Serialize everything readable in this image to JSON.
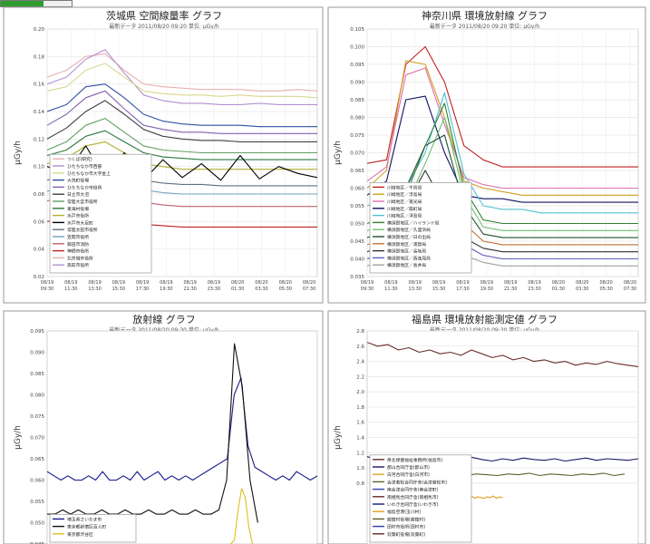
{
  "loading_progress": 0.6,
  "chart_data": [
    {
      "type": "line",
      "title": "茨城県 空間線量率 グラフ",
      "subtitle": "最新データ 2011/08/20 09:20  単位: μGy/h",
      "ylabel": "μGy/h",
      "ylim": [
        0.02,
        0.2
      ],
      "yticks": [
        "0.02",
        "0.04",
        "0.06",
        "0.08",
        "0.10",
        "0.12",
        "0.14",
        "0.16",
        "0.18",
        "0.20"
      ],
      "xticks": [
        "08/19 09:30",
        "08/19 11:30",
        "08/19 13:30",
        "08/19 15:30",
        "08/19 17:30",
        "08/19 19:30",
        "08/19 21:30",
        "08/19 23:30",
        "08/20 01:30",
        "08/20 03:30",
        "08/20 05:30",
        "08/20 07:30"
      ],
      "grid": true,
      "legend_position": "bottom-left",
      "legend": [
        "つくば(研究)",
        "ひたちなか市西部",
        "ひたちなか市大字金上",
        "大洗町役場",
        "ひたちなか市役所",
        "日立市大沼",
        "常陸大宮市役所",
        "東海村役場",
        "水戸市役所",
        "水戸市大足町",
        "常陸太田市役所",
        "笠間市役所",
        "鉾田市消防",
        "神栖市役所",
        "北茨城市役所",
        "高萩市役所"
      ],
      "series": [
        {
          "color": "#e8b0b0",
          "values": [
            0.165,
            0.17,
            0.18,
            0.182,
            0.17,
            0.16,
            0.158,
            0.157,
            0.156,
            0.156,
            0.156,
            0.155,
            0.155,
            0.156,
            0.155
          ]
        },
        {
          "color": "#b090d0",
          "values": [
            0.16,
            0.165,
            0.178,
            0.185,
            0.168,
            0.152,
            0.148,
            0.146,
            0.146,
            0.145,
            0.145,
            0.146,
            0.145,
            0.145,
            0.145
          ]
        },
        {
          "color": "#d8d890",
          "values": [
            0.155,
            0.158,
            0.17,
            0.175,
            0.165,
            0.155,
            0.153,
            0.152,
            0.152,
            0.151,
            0.152,
            0.151,
            0.151,
            0.151,
            0.15
          ]
        },
        {
          "color": "#3050a0",
          "values": [
            0.14,
            0.145,
            0.158,
            0.16,
            0.15,
            0.138,
            0.133,
            0.131,
            0.13,
            0.13,
            0.13,
            0.129,
            0.129,
            0.129,
            0.129
          ]
        },
        {
          "color": "#8060b0",
          "values": [
            0.13,
            0.138,
            0.15,
            0.155,
            0.142,
            0.13,
            0.127,
            0.125,
            0.125,
            0.124,
            0.124,
            0.124,
            0.124,
            0.124,
            0.124
          ]
        },
        {
          "color": "#404040",
          "values": [
            0.12,
            0.128,
            0.14,
            0.148,
            0.138,
            0.127,
            0.122,
            0.12,
            0.119,
            0.119,
            0.118,
            0.118,
            0.118,
            0.118,
            0.118
          ]
        },
        {
          "color": "#60a060",
          "values": [
            0.112,
            0.118,
            0.13,
            0.135,
            0.125,
            0.115,
            0.112,
            0.111,
            0.11,
            0.11,
            0.11,
            0.11,
            0.11,
            0.11,
            0.11
          ]
        },
        {
          "color": "#2a7a40",
          "values": [
            0.108,
            0.112,
            0.122,
            0.126,
            0.118,
            0.11,
            0.107,
            0.106,
            0.105,
            0.105,
            0.105,
            0.105,
            0.105,
            0.105,
            0.105
          ]
        },
        {
          "color": "#b0b030",
          "values": [
            0.102,
            0.106,
            0.115,
            0.118,
            0.11,
            0.102,
            0.1,
            0.098,
            0.098,
            0.098,
            0.098,
            0.098,
            0.098,
            0.098,
            0.098
          ]
        },
        {
          "color": "#000000",
          "values": [
            0.1,
            0.095,
            0.115,
            0.092,
            0.11,
            0.09,
            0.105,
            0.092,
            0.102,
            0.09,
            0.108,
            0.091,
            0.1,
            0.095,
            0.092
          ]
        },
        {
          "color": "#607080",
          "values": [
            0.09,
            0.094,
            0.1,
            0.102,
            0.096,
            0.09,
            0.088,
            0.087,
            0.087,
            0.086,
            0.086,
            0.086,
            0.086,
            0.086,
            0.086
          ]
        },
        {
          "color": "#70a0c0",
          "values": [
            0.082,
            0.085,
            0.092,
            0.095,
            0.088,
            0.083,
            0.081,
            0.08,
            0.08,
            0.08,
            0.08,
            0.08,
            0.08,
            0.08,
            0.08
          ]
        },
        {
          "color": "#c06070",
          "values": [
            0.075,
            0.078,
            0.085,
            0.087,
            0.08,
            0.074,
            0.072,
            0.071,
            0.071,
            0.071,
            0.071,
            0.071,
            0.071,
            0.071,
            0.071
          ]
        },
        {
          "color": "#c02020",
          "values": [
            0.06,
            0.062,
            0.068,
            0.07,
            0.062,
            0.058,
            0.057,
            0.056,
            0.056,
            0.056,
            0.056,
            0.056,
            0.056,
            0.056,
            0.056
          ]
        }
      ]
    },
    {
      "type": "line",
      "title": "神奈川県 環境放射線 グラフ",
      "subtitle": "最新データ 2011/08/20 09:20  単位: μGy/h",
      "ylabel": "μGy/h",
      "ylim": [
        0.035,
        0.105
      ],
      "yticks": [
        "0.035",
        "0.040",
        "0.045",
        "0.050",
        "0.055",
        "0.060",
        "0.065",
        "0.070",
        "0.075",
        "0.080",
        "0.085",
        "0.090",
        "0.095",
        "0.100",
        "0.105"
      ],
      "xticks": [
        "08/19 09:30",
        "08/19 11:30",
        "08/19 13:30",
        "08/19 15:30",
        "08/19 17:30",
        "08/19 19:30",
        "08/19 21:30",
        "08/19 23:30",
        "08/20 01:30",
        "08/20 03:30",
        "08/20 05:30",
        "08/20 07:30"
      ],
      "grid": true,
      "legend_position": "bottom-left",
      "legend": [
        "川崎地区／千鳥局",
        "川崎地区／浮島局",
        "川崎地区／夜光局",
        "川崎地区／殿町局",
        "川崎地区／浮島局",
        "横須賀地区／ハイランド局",
        "横須賀地区／久里浜局",
        "横須賀地区／日の出局",
        "横須賀地区／浦賀局",
        "横須賀地区／長坂局",
        "横須賀地区／西逸見局",
        "横須賀地区／長井局"
      ],
      "series": [
        {
          "color": "#c02020",
          "values": [
            0.067,
            0.068,
            0.095,
            0.1,
            0.09,
            0.072,
            0.068,
            0.066,
            0.066,
            0.066,
            0.066,
            0.066,
            0.066,
            0.066,
            0.066
          ]
        },
        {
          "color": "#d0a020",
          "values": [
            0.06,
            0.065,
            0.096,
            0.095,
            0.08,
            0.062,
            0.06,
            0.059,
            0.058,
            0.058,
            0.058,
            0.058,
            0.058,
            0.058,
            0.058
          ]
        },
        {
          "color": "#e070b0",
          "values": [
            0.062,
            0.066,
            0.092,
            0.094,
            0.078,
            0.063,
            0.061,
            0.06,
            0.06,
            0.06,
            0.06,
            0.06,
            0.06,
            0.06,
            0.06
          ]
        },
        {
          "color": "#101060",
          "values": [
            0.058,
            0.062,
            0.085,
            0.086,
            0.07,
            0.058,
            0.057,
            0.057,
            0.056,
            0.056,
            0.056,
            0.056,
            0.056,
            0.056,
            0.056
          ]
        },
        {
          "color": "#50c0d0",
          "values": [
            0.055,
            0.057,
            0.06,
            0.07,
            0.087,
            0.064,
            0.055,
            0.054,
            0.054,
            0.053,
            0.053,
            0.053,
            0.053,
            0.053,
            0.053
          ]
        },
        {
          "color": "#308030",
          "values": [
            0.05,
            0.052,
            0.058,
            0.072,
            0.084,
            0.06,
            0.051,
            0.05,
            0.05,
            0.05,
            0.05,
            0.05,
            0.05,
            0.05,
            0.05
          ]
        },
        {
          "color": "#70c070",
          "values": [
            0.048,
            0.05,
            0.055,
            0.067,
            0.08,
            0.058,
            0.049,
            0.048,
            0.048,
            0.048,
            0.048,
            0.048,
            0.048,
            0.048,
            0.048
          ]
        },
        {
          "color": "#205030",
          "values": [
            0.046,
            0.048,
            0.06,
            0.072,
            0.075,
            0.055,
            0.047,
            0.046,
            0.046,
            0.046,
            0.046,
            0.046,
            0.046,
            0.046,
            0.046
          ]
        },
        {
          "color": "#c07030",
          "values": [
            0.044,
            0.046,
            0.05,
            0.055,
            0.06,
            0.05,
            0.045,
            0.044,
            0.044,
            0.044,
            0.044,
            0.044,
            0.044,
            0.044,
            0.044
          ]
        },
        {
          "color": "#303030",
          "values": [
            0.042,
            0.044,
            0.055,
            0.065,
            0.055,
            0.046,
            0.043,
            0.042,
            0.042,
            0.042,
            0.042,
            0.042,
            0.042,
            0.042,
            0.042
          ]
        },
        {
          "color": "#6060c0",
          "values": [
            0.04,
            0.042,
            0.048,
            0.058,
            0.052,
            0.044,
            0.041,
            0.04,
            0.04,
            0.04,
            0.04,
            0.04,
            0.04,
            0.04,
            0.04
          ]
        },
        {
          "color": "#a0a0a0",
          "values": [
            0.038,
            0.04,
            0.045,
            0.05,
            0.048,
            0.041,
            0.039,
            0.038,
            0.038,
            0.038,
            0.038,
            0.038,
            0.038,
            0.038,
            0.038
          ]
        }
      ]
    },
    {
      "type": "line",
      "title": "放射線 グラフ",
      "subtitle": "最新データ 2011/08/20 09:30  単位: μGy/h",
      "ylabel": "μGy/h",
      "ylim": [
        0.045,
        0.095
      ],
      "yticks": [
        "0.045",
        "0.050",
        "0.055",
        "0.060",
        "0.065",
        "0.070",
        "0.075",
        "0.080",
        "0.085",
        "0.090",
        "0.095"
      ],
      "grid": false,
      "legend_position": "bottom-left",
      "legend": [
        "埼玉県さいたま市",
        "東京都新宿区百人町",
        "東京都渋谷区"
      ],
      "series": [
        {
          "color": "#1a1a8a",
          "values": [
            0.062,
            0.061,
            0.06,
            0.061,
            0.06,
            0.06,
            0.061,
            0.06,
            0.062,
            0.06,
            0.06,
            0.061,
            0.06,
            0.062,
            0.06,
            0.061,
            0.062,
            0.06,
            0.061,
            0.06,
            0.061,
            0.06,
            0.061,
            0.062,
            0.063,
            0.064,
            0.065,
            0.08,
            0.084,
            0.068,
            0.063,
            0.062,
            0.061,
            0.06,
            0.061,
            0.06,
            0.062,
            0.061,
            0.06,
            0.061
          ]
        },
        {
          "color": "#111111",
          "values": [
            0.052,
            0.052,
            0.053,
            0.052,
            0.053,
            0.052,
            0.052,
            0.053,
            0.052,
            0.052,
            0.053,
            0.052,
            0.052,
            0.053,
            0.052,
            0.052,
            0.053,
            0.052,
            0.052,
            0.053,
            0.052,
            0.052,
            0.053,
            0.06,
            0.092,
            0.082,
            0.06,
            0.05
          ]
        },
        {
          "color": "#e0c020",
          "values": [
            0.045,
            0.046,
            0.053,
            0.058,
            0.056,
            0.049,
            0.045
          ]
        }
      ]
    },
    {
      "type": "line",
      "title": "福島県 環境放射能測定値 グラフ",
      "subtitle": "最新データ 2011/08/20 09:30  単位: μGy/h",
      "ylabel": "μGy/h",
      "ylim": [
        0.0,
        2.8
      ],
      "yticks": [
        "2.8",
        "2.6",
        "2.4",
        "2.2",
        "2.0",
        "1.8",
        "1.6",
        "1.4",
        "1.2",
        "1.0",
        "0.8"
      ],
      "grid": true,
      "legend_position": "bottom-left",
      "legend": [
        "県北保健福祉事務所(福島市)",
        "郡山合同庁舎(郡山市)",
        "白河合同庁舎(白河市)",
        "会津若松合同庁舎(会津若松市)",
        "南会津合同庁舎(南会津町)",
        "南相馬合同庁舎(南相馬市)",
        "いわき合同庁舎(いわき市)",
        "福島空港(玉川村)",
        "飯舘村役場(飯舘村)",
        "田村市役所(田村市)",
        "双葉町役場(双葉町)"
      ],
      "series": [
        {
          "color": "#6a2b2b",
          "values": [
            2.65,
            2.6,
            2.62,
            2.55,
            2.58,
            2.52,
            2.55,
            2.5,
            2.52,
            2.48,
            2.55,
            2.5,
            2.45,
            2.48,
            2.42,
            2.45,
            2.4,
            2.42,
            2.38,
            2.4,
            2.35,
            2.38,
            2.36,
            2.4,
            2.37,
            2.35,
            2.33
          ]
        },
        {
          "color": "#1a1a6a",
          "values": [
            1.15,
            1.1,
            1.12,
            1.08,
            1.14,
            1.1,
            1.12,
            1.09,
            1.13,
            1.1,
            1.14,
            1.11,
            1.09,
            1.12,
            1.1,
            1.13,
            1.11,
            1.1,
            1.12,
            1.09,
            1.11,
            1.13,
            1.1,
            1.12,
            1.11,
            1.1,
            1.12
          ]
        },
        {
          "color": "#e0a020",
          "values": [
            0.6,
            0.62,
            0.61,
            0.63,
            0.6,
            0.62,
            0.61,
            0.6,
            0.62,
            0.61,
            0.63,
            0.6,
            0.62,
            0.61
          ]
        },
        {
          "color": "#606030",
          "values": [
            0.92,
            0.9,
            0.93,
            0.91,
            0.9,
            0.92,
            0.91,
            0.93,
            0.9,
            0.92,
            0.91,
            0.9,
            0.92,
            0.91,
            0.93,
            0.9,
            0.92,
            0.91,
            0.9,
            0.92,
            0.91,
            0.93,
            0.9,
            0.92
          ]
        },
        {
          "color": "#3040a0",
          "values": [
            0.82,
            0.8,
            0.83,
            0.81,
            0.8,
            0.82,
            0.81,
            0.8,
            0.83,
            0.81
          ]
        }
      ]
    }
  ]
}
